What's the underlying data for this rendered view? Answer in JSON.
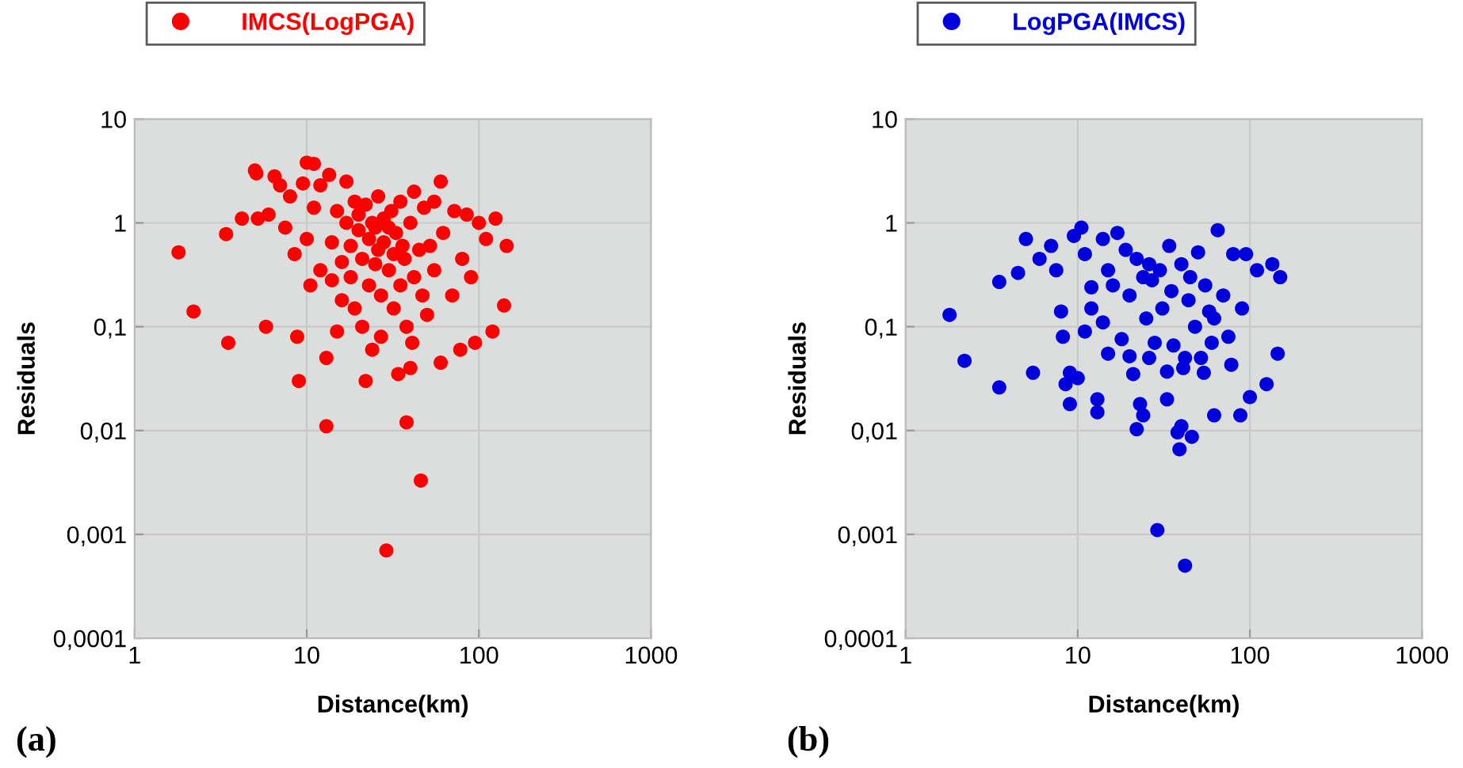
{
  "chart_data": [
    {
      "type": "scatter",
      "xlabel": "Distance(km)",
      "ylabel": "Residuals",
      "annotations": [
        "(a)"
      ],
      "log": "xy",
      "grid": true,
      "legend": "top left",
      "marker": "circle",
      "xlim": [
        1,
        1000
      ],
      "xticks": [
        1,
        10,
        100,
        1000
      ],
      "ylim": [
        0.0001,
        10
      ],
      "yticks": [
        {
          "value": 0.0001,
          "label": "0,0001"
        },
        {
          "value": 0.001,
          "label": "0,001"
        },
        {
          "value": 0.01,
          "label": "0,01"
        },
        {
          "value": 0.1,
          "label": "0,1"
        },
        1,
        10
      ],
      "series": [
        {
          "name": "IMCS(LogPGA)",
          "color": "#ff0000",
          "x": [
            1.8,
            2.2,
            3.5,
            3.4,
            4.2,
            5.0,
            5.1,
            5.8,
            5.2,
            6,
            6.5,
            7,
            7.5,
            8,
            8.5,
            8.8,
            9,
            9.5,
            10,
            10,
            10.5,
            11,
            11,
            12,
            12,
            13,
            13,
            13.5,
            14,
            14,
            15,
            15,
            16,
            16,
            17,
            17,
            18,
            18,
            19,
            19,
            20,
            20,
            21,
            21,
            22,
            22,
            23,
            23,
            24,
            24,
            25,
            25,
            26,
            26,
            27,
            27,
            28,
            28,
            29,
            30,
            30,
            31,
            32,
            32,
            33,
            34,
            35,
            35,
            36,
            37,
            38,
            38,
            40,
            40,
            41,
            42,
            42,
            45,
            46,
            47,
            48,
            50,
            52,
            55,
            55,
            60,
            60,
            62,
            70,
            72,
            78,
            80,
            85,
            90,
            95,
            100,
            110,
            120,
            125,
            140,
            145
          ],
          "values": [
            0.52,
            0.14,
            0.07,
            0.78,
            1.1,
            3.2,
            3.0,
            0.1,
            1.1,
            1.2,
            2.8,
            2.3,
            0.9,
            1.8,
            0.5,
            0.08,
            0.03,
            2.4,
            3.8,
            0.7,
            0.25,
            3.7,
            1.4,
            2.3,
            0.35,
            0.05,
            0.011,
            2.9,
            0.65,
            0.28,
            1.3,
            0.09,
            0.42,
            0.18,
            1.0,
            2.5,
            0.6,
            0.3,
            1.6,
            0.15,
            0.85,
            1.2,
            0.45,
            0.1,
            0.03,
            1.5,
            0.7,
            0.25,
            1.0,
            0.06,
            0.9,
            0.4,
            1.8,
            0.55,
            0.2,
            0.08,
            1.1,
            0.65,
            0.0007,
            0.9,
            0.35,
            1.3,
            0.15,
            0.5,
            0.8,
            0.035,
            1.6,
            0.25,
            0.6,
            0.45,
            0.012,
            0.1,
            1.0,
            0.04,
            0.07,
            2.0,
            0.3,
            0.55,
            0.0033,
            0.2,
            1.4,
            0.13,
            0.6,
            0.35,
            1.6,
            2.5,
            0.045,
            0.8,
            0.2,
            1.3,
            0.06,
            0.45,
            1.2,
            0.3,
            0.07,
            1.0,
            0.7,
            0.09,
            1.1,
            0.16,
            0.6
          ]
        }
      ]
    },
    {
      "type": "scatter",
      "xlabel": "Distance(km)",
      "ylabel": "Residuals",
      "annotations": [
        "(b)"
      ],
      "log": "xy",
      "grid": true,
      "legend": "top left",
      "marker": "circle",
      "xlim": [
        1,
        1000
      ],
      "xticks": [
        1,
        10,
        100,
        1000
      ],
      "ylim": [
        0.0001,
        10
      ],
      "yticks": [
        {
          "value": 0.0001,
          "label": "0,0001"
        },
        {
          "value": 0.001,
          "label": "0,001"
        },
        {
          "value": 0.01,
          "label": "0,01"
        },
        {
          "value": 0.1,
          "label": "0,1"
        },
        1,
        10
      ],
      "series": [
        {
          "name": "LogPGA(IMCS)",
          "color": "#0000dd",
          "x": [
            1.8,
            2.2,
            3.5,
            3.5,
            4.5,
            5,
            5.5,
            6,
            7,
            7.5,
            8,
            8.2,
            8.5,
            9,
            9,
            9.5,
            10,
            10.5,
            11,
            11,
            12,
            12,
            13,
            13,
            14,
            14,
            15,
            15,
            16,
            17,
            18,
            19,
            20,
            20,
            21,
            22,
            22,
            23,
            24,
            24,
            25,
            26,
            26,
            27,
            28,
            29,
            30,
            31,
            33,
            33,
            34,
            35,
            36,
            38,
            39,
            40,
            40,
            41,
            42,
            42,
            44,
            45,
            46,
            48,
            50,
            52,
            54,
            55,
            58,
            60,
            62,
            62,
            65,
            70,
            75,
            78,
            80,
            88,
            90,
            95,
            100,
            110,
            125,
            135,
            145,
            150
          ],
          "values": [
            0.13,
            0.047,
            0.026,
            0.27,
            0.33,
            0.7,
            0.036,
            0.45,
            0.6,
            0.35,
            0.14,
            0.08,
            0.028,
            0.018,
            0.036,
            0.75,
            0.032,
            0.9,
            0.09,
            0.5,
            0.24,
            0.15,
            0.02,
            0.015,
            0.7,
            0.11,
            0.055,
            0.35,
            0.25,
            0.8,
            0.076,
            0.55,
            0.052,
            0.2,
            0.035,
            0.0103,
            0.45,
            0.018,
            0.014,
            0.3,
            0.12,
            0.05,
            0.4,
            0.28,
            0.07,
            0.0011,
            0.35,
            0.15,
            0.037,
            0.02,
            0.6,
            0.22,
            0.066,
            0.0096,
            0.0066,
            0.4,
            0.011,
            0.04,
            0.0005,
            0.05,
            0.18,
            0.3,
            0.0087,
            0.1,
            0.52,
            0.05,
            0.036,
            0.25,
            0.14,
            0.07,
            0.014,
            0.12,
            0.85,
            0.2,
            0.08,
            0.043,
            0.5,
            0.014,
            0.15,
            0.5,
            0.021,
            0.35,
            0.028,
            0.4,
            0.055,
            0.3
          ]
        }
      ]
    }
  ]
}
